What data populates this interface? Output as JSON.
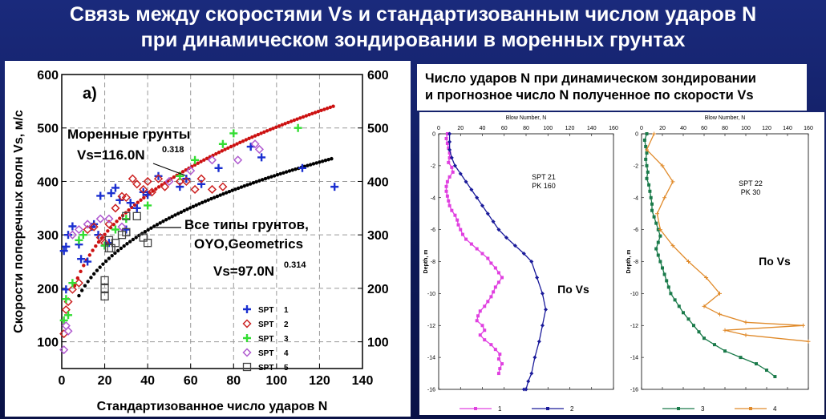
{
  "header": {
    "title_line1": "Связь между скоростями Vs и стандартизованным числом ударов N",
    "title_line2": "при динамическом зондировании в моренных грунтах"
  },
  "right_caption": {
    "line1": "Число ударов N при динамическом зондировании",
    "line2": "и прогнозное число N полученное по скорости Vs"
  },
  "colors": {
    "background": "#13227a",
    "moraine_fit": "#cc1111",
    "all_fit": "#000000",
    "spt1": "#1a2fd0",
    "spt2": "#cc2222",
    "spt3": "#33dd33",
    "spt4": "#b05ad0",
    "spt5": "#444444",
    "series1": "#e040e0",
    "series2": "#1a1a9a",
    "series3": "#1a7a4a",
    "series4": "#e08a2a"
  },
  "chart_data": [
    {
      "type": "scatter",
      "panel_label": "а)",
      "xlabel": "Стандартизованное число ударов N",
      "ylabel": "Скорости поперечных волн Vs, м/с",
      "xlim": [
        0,
        140
      ],
      "ylim": [
        50,
        600
      ],
      "xticks": [
        0,
        20,
        40,
        60,
        80,
        100,
        120,
        140
      ],
      "yticks": [
        100,
        200,
        300,
        400,
        500,
        600
      ],
      "grid": true,
      "legend_position": "bottom-right",
      "annotations": [
        {
          "lines": [
            "Моренные грунты",
            "Vs=116.0N",
            "0.318"
          ],
          "role": "moraine"
        },
        {
          "lines": [
            "Все типы грунтов,",
            "OYO,Geometrics",
            "Vs=97.0N",
            "0.314"
          ],
          "role": "all"
        }
      ],
      "fits": [
        {
          "name": "moraine",
          "a": 116.0,
          "b": 0.318,
          "x_range": [
            6,
            127
          ]
        },
        {
          "name": "all",
          "a": 97.0,
          "b": 0.314,
          "x_range": [
            8,
            127
          ]
        }
      ],
      "series": [
        {
          "name": "SPT 1",
          "label_text": "SPT",
          "label_num": "1",
          "marker": "plus",
          "points": [
            [
              1,
              270
            ],
            [
              2,
              278
            ],
            [
              2,
              198
            ],
            [
              3,
              300
            ],
            [
              5,
              316
            ],
            [
              8,
              282
            ],
            [
              9,
              255
            ],
            [
              12,
              250
            ],
            [
              14,
              315
            ],
            [
              15,
              320
            ],
            [
              17,
              300
            ],
            [
              18,
              373
            ],
            [
              20,
              280
            ],
            [
              22,
              285
            ],
            [
              23,
              378
            ],
            [
              25,
              388
            ],
            [
              27,
              365
            ],
            [
              30,
              310
            ],
            [
              32,
              360
            ],
            [
              35,
              350
            ],
            [
              38,
              380
            ],
            [
              40,
              375
            ],
            [
              45,
              410
            ],
            [
              55,
              390
            ],
            [
              58,
              405
            ],
            [
              65,
              395
            ],
            [
              73,
              425
            ],
            [
              88,
              465
            ],
            [
              93,
              445
            ],
            [
              112,
              425
            ],
            [
              127,
              390
            ]
          ]
        },
        {
          "name": "SPT 2",
          "label_text": "SPT",
          "label_num": "2",
          "marker": "diamond",
          "points": [
            [
              1,
              115
            ],
            [
              2,
              160
            ],
            [
              3,
              175
            ],
            [
              5,
              198
            ],
            [
              8,
              210
            ],
            [
              12,
              310
            ],
            [
              15,
              315
            ],
            [
              18,
              295
            ],
            [
              20,
              285
            ],
            [
              22,
              320
            ],
            [
              25,
              350
            ],
            [
              28,
              372
            ],
            [
              30,
              370
            ],
            [
              33,
              405
            ],
            [
              35,
              395
            ],
            [
              38,
              385
            ],
            [
              40,
              400
            ],
            [
              42,
              380
            ],
            [
              45,
              405
            ],
            [
              48,
              390
            ],
            [
              55,
              400
            ],
            [
              58,
              400
            ],
            [
              62,
              385
            ],
            [
              65,
              405
            ],
            [
              70,
              385
            ],
            [
              75,
              390
            ]
          ]
        },
        {
          "name": "SPT 3",
          "label_text": "SPT",
          "label_num": "3",
          "marker": "plus",
          "points": [
            [
              1,
              140
            ],
            [
              2,
              180
            ],
            [
              3,
              150
            ],
            [
              5,
              210
            ],
            [
              8,
              290
            ],
            [
              10,
              300
            ],
            [
              20,
              280
            ],
            [
              25,
              310
            ],
            [
              30,
              330
            ],
            [
              40,
              355
            ],
            [
              55,
              410
            ],
            [
              62,
              440
            ],
            [
              75,
              470
            ],
            [
              80,
              490
            ],
            [
              110,
              500
            ]
          ]
        },
        {
          "name": "SPT 4",
          "label_text": "SPT",
          "label_num": "4",
          "marker": "diamond",
          "points": [
            [
              1,
              85
            ],
            [
              2,
              130
            ],
            [
              3,
              120
            ],
            [
              5,
              300
            ],
            [
              8,
              310
            ],
            [
              12,
              320
            ],
            [
              18,
              330
            ],
            [
              22,
              330
            ],
            [
              28,
              315
            ],
            [
              50,
              400
            ],
            [
              60,
              420
            ],
            [
              70,
              440
            ],
            [
              82,
              440
            ],
            [
              90,
              470
            ],
            [
              92,
              460
            ]
          ]
        },
        {
          "name": "SPT 5",
          "label_text": "SPT",
          "label_num": "5",
          "marker": "square",
          "points": [
            [
              20,
              185
            ],
            [
              20,
              200
            ],
            [
              20,
              215
            ],
            [
              22,
              275
            ],
            [
              22,
              290
            ],
            [
              23,
              275
            ],
            [
              25,
              285
            ],
            [
              28,
              300
            ],
            [
              30,
              305
            ],
            [
              30,
              335
            ],
            [
              35,
              335
            ],
            [
              38,
              295
            ],
            [
              40,
              285
            ]
          ]
        }
      ]
    },
    {
      "type": "line",
      "title": "Blow Number, N",
      "ylabel": "Depth, m",
      "xlim": [
        0,
        160
      ],
      "ylim": [
        -16,
        0
      ],
      "xticks": [
        0,
        20,
        40,
        60,
        80,
        100,
        120,
        140,
        160
      ],
      "yticks": [
        0,
        -2,
        -4,
        -6,
        -8,
        -10,
        -12,
        -14,
        -16
      ],
      "annotations": [
        "SPT 21",
        "PK 160",
        "По Vs"
      ],
      "legend": [
        {
          "label": "1"
        },
        {
          "label": "2"
        }
      ],
      "series": [
        {
          "name": "1",
          "color": "#e040e0",
          "marker": "square",
          "x": [
            8,
            7,
            8,
            9,
            10,
            10,
            9,
            12,
            13,
            10,
            8,
            7,
            7,
            8,
            9,
            10,
            12,
            15,
            17,
            18,
            20,
            22,
            25,
            30,
            35,
            40,
            45,
            48,
            52,
            55,
            58,
            55,
            52,
            50,
            48,
            45,
            42,
            38,
            36,
            35,
            40,
            42,
            38,
            42,
            48,
            52,
            56,
            55,
            58,
            56,
            55
          ],
          "y": [
            0,
            -0.3,
            -0.6,
            -0.9,
            -1.2,
            -1.5,
            -1.8,
            -2.1,
            -2.4,
            -2.7,
            -3.0,
            -3.3,
            -3.6,
            -3.9,
            -4.2,
            -4.5,
            -4.8,
            -5.1,
            -5.4,
            -5.7,
            -6.0,
            -6.3,
            -6.6,
            -6.9,
            -7.2,
            -7.5,
            -7.8,
            -8.1,
            -8.4,
            -8.7,
            -9.0,
            -9.3,
            -9.6,
            -9.9,
            -10.2,
            -10.5,
            -10.8,
            -11.1,
            -11.4,
            -11.7,
            -12.0,
            -12.3,
            -12.6,
            -12.9,
            -13.2,
            -13.5,
            -13.8,
            -14.1,
            -14.4,
            -14.7,
            -15.0
          ]
        },
        {
          "name": "2",
          "color": "#1a1a9a",
          "marker": "diamond",
          "x": [
            10,
            10,
            10,
            12,
            15,
            20,
            25,
            30,
            35,
            40,
            45,
            50,
            55,
            62,
            70,
            78,
            85,
            90,
            95,
            98,
            95,
            92,
            88,
            85,
            82,
            80,
            78
          ],
          "y": [
            0,
            -0.5,
            -1.0,
            -1.5,
            -2.0,
            -2.5,
            -3.0,
            -3.5,
            -4.0,
            -4.5,
            -5.0,
            -5.5,
            -6.0,
            -6.5,
            -7.0,
            -7.5,
            -8.0,
            -9.0,
            -10.0,
            -11.0,
            -12.0,
            -13.0,
            -14.0,
            -15.0,
            -15.5,
            -16.0,
            -16.0
          ]
        }
      ]
    },
    {
      "type": "line",
      "title": "Blow Number, N",
      "ylabel": "Depth, m",
      "xlim": [
        0,
        160
      ],
      "ylim": [
        -16,
        0
      ],
      "xticks": [
        0,
        20,
        40,
        60,
        80,
        100,
        120,
        140,
        160
      ],
      "yticks": [
        0,
        -2,
        -4,
        -6,
        -8,
        -10,
        -12,
        -14,
        -16
      ],
      "annotations": [
        "SPT 22",
        "PK 30",
        "По Vs"
      ],
      "legend": [
        {
          "label": "3"
        },
        {
          "label": "4"
        }
      ],
      "series": [
        {
          "name": "3",
          "color": "#1a7a4a",
          "marker": "square",
          "x": [
            5,
            3,
            4,
            5,
            4,
            5,
            6,
            5,
            7,
            8,
            9,
            10,
            10,
            12,
            14,
            16,
            18,
            16,
            14,
            16,
            18,
            20,
            22,
            24,
            26,
            28,
            32,
            36,
            40,
            45,
            50,
            55,
            60,
            70,
            80,
            95,
            110,
            120,
            128
          ],
          "y": [
            0,
            -0.4,
            -0.8,
            -1.2,
            -1.6,
            -2.0,
            -2.4,
            -2.8,
            -3.2,
            -3.6,
            -4.0,
            -4.4,
            -4.8,
            -5.2,
            -5.6,
            -6.0,
            -6.4,
            -6.8,
            -7.2,
            -7.6,
            -8.0,
            -8.4,
            -8.8,
            -9.2,
            -9.6,
            -10.0,
            -10.4,
            -10.8,
            -11.2,
            -11.6,
            -12.0,
            -12.4,
            -12.8,
            -13.2,
            -13.6,
            -14.0,
            -14.4,
            -14.8,
            -15.2
          ]
        },
        {
          "name": "4",
          "color": "#e08a2a",
          "marker": "plus",
          "x": [
            12,
            5,
            20,
            30,
            22,
            15,
            18,
            30,
            45,
            62,
            75,
            60,
            75,
            100,
            155,
            80,
            100,
            160
          ],
          "y": [
            0,
            -1.0,
            -2.0,
            -3.0,
            -4.0,
            -5.0,
            -6.0,
            -7.0,
            -8.0,
            -9.0,
            -10.0,
            -10.8,
            -11.3,
            -11.8,
            -12.0,
            -12.3,
            -12.6,
            -13.0
          ]
        }
      ]
    }
  ]
}
